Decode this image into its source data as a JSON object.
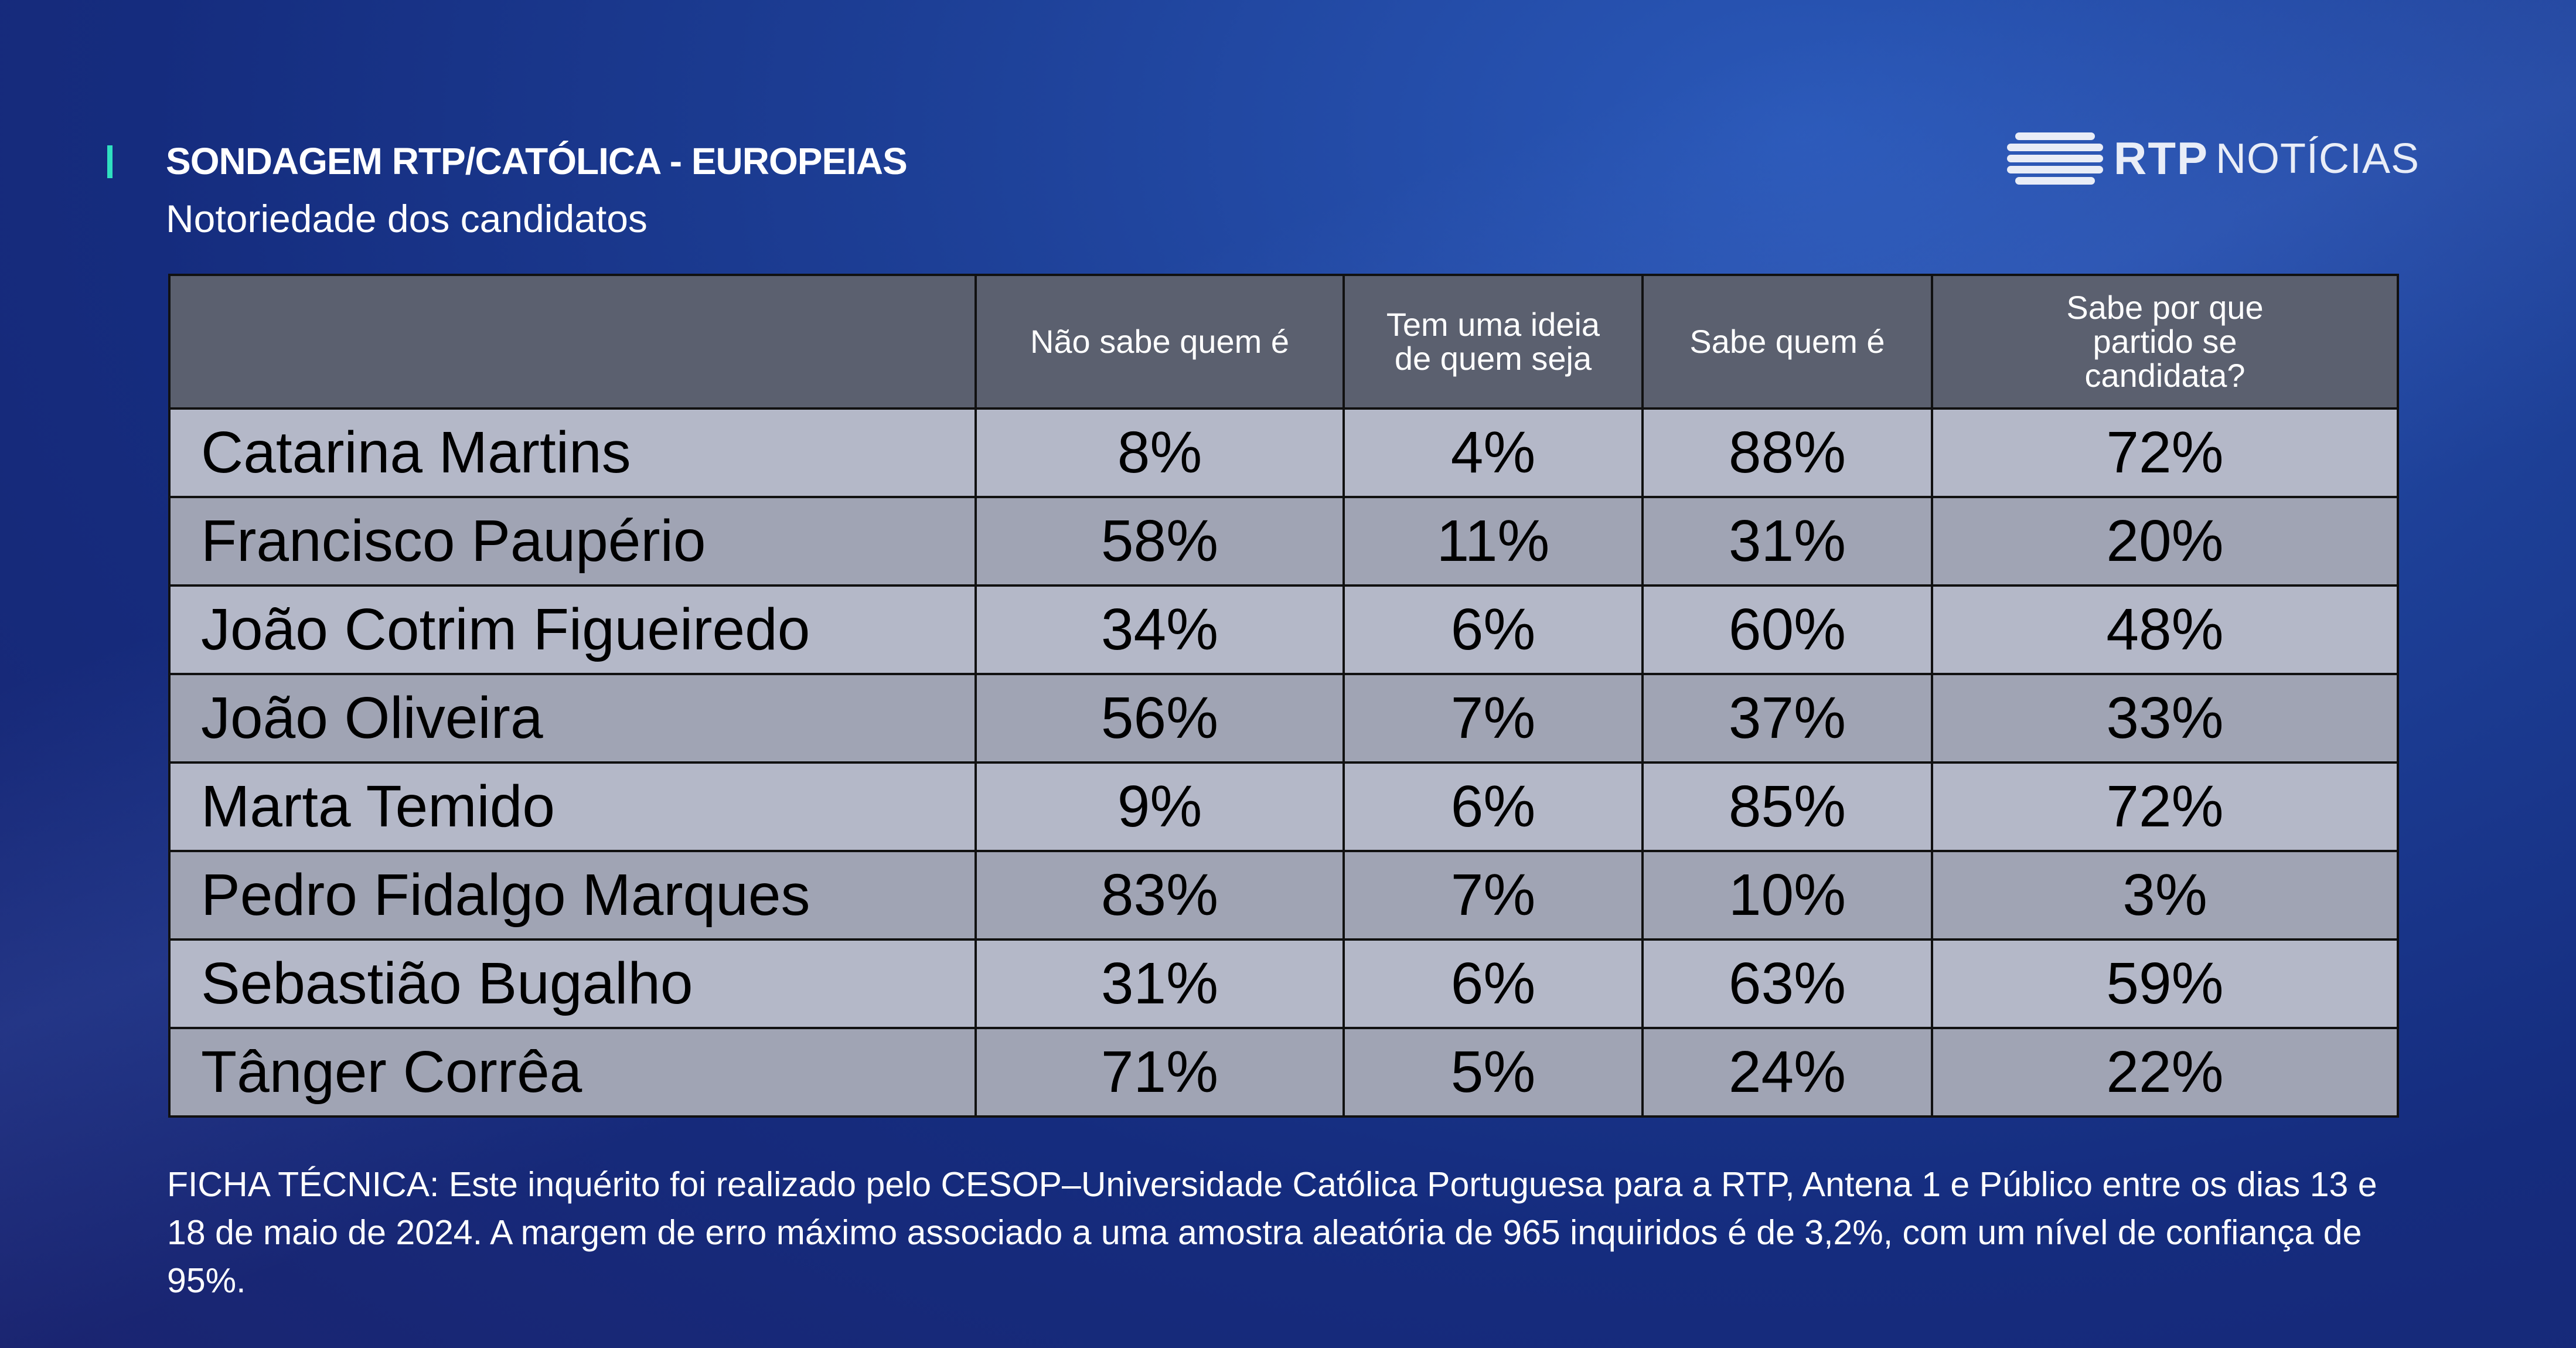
{
  "header": {
    "title": "SONDAGEM RTP/CATÓLICA - EUROPEIAS",
    "subtitle": "Notoriedade dos candidatos"
  },
  "logo": {
    "brand": "RTP",
    "product": "NOTÍCIAS"
  },
  "table": {
    "columns": [
      "",
      "Não sabe quem é",
      "Tem uma ideia de quem seja",
      "Sabe quem é",
      "Sabe por que partido se candidata?"
    ],
    "rows": [
      {
        "name": "Catarina Martins",
        "values": [
          "8%",
          "4%",
          "88%",
          "72%"
        ]
      },
      {
        "name": "Francisco Paupério",
        "values": [
          "58%",
          "11%",
          "31%",
          "20%"
        ]
      },
      {
        "name": "João Cotrim Figueiredo",
        "values": [
          "34%",
          "6%",
          "60%",
          "48%"
        ]
      },
      {
        "name": "João Oliveira",
        "values": [
          "56%",
          "7%",
          "37%",
          "33%"
        ]
      },
      {
        "name": "Marta Temido",
        "values": [
          "9%",
          "6%",
          "85%",
          "72%"
        ]
      },
      {
        "name": "Pedro Fidalgo Marques",
        "values": [
          "83%",
          "7%",
          "10%",
          "3%"
        ]
      },
      {
        "name": "Sebastião Bugalho",
        "values": [
          "31%",
          "6%",
          "63%",
          "59%"
        ]
      },
      {
        "name": "Tânger Corrêa",
        "values": [
          "71%",
          "5%",
          "24%",
          "22%"
        ]
      }
    ]
  },
  "footnote": "FICHA TÉCNICA: Este inquérito foi realizado pelo CESOP–Universidade Católica Portuguesa para a RTP, Antena 1 e Público entre os dias 13 e 18 de maio de 2024. A margem de erro máximo associado a uma amostra aleatória de 965 inquiridos é de 3,2%, com um nível de confiança de 95%."
}
